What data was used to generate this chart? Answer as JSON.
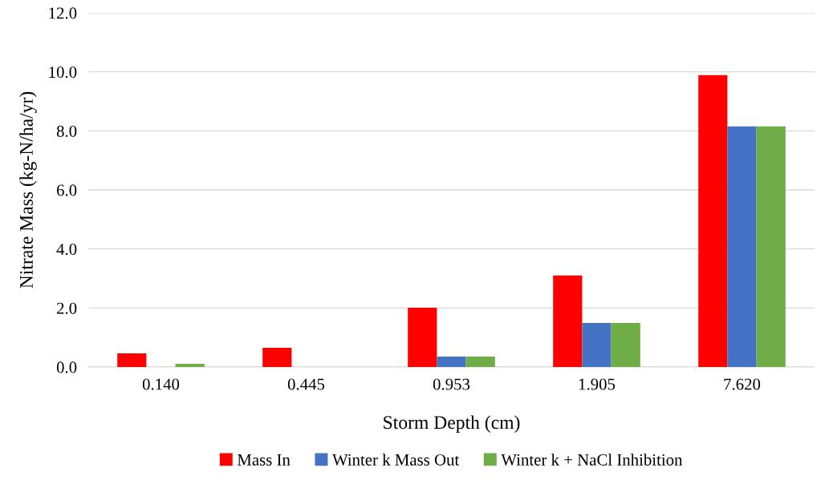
{
  "chart_data": {
    "type": "bar",
    "xlabel": "Storm Depth (cm)",
    "ylabel": "Nitrate Mass (kg-N/ha/yr)",
    "categories": [
      "0.140",
      "0.445",
      "0.953",
      "1.905",
      "7.620"
    ],
    "series": [
      {
        "name": "Mass In",
        "color": "#ff0000",
        "values": [
          0.46,
          0.65,
          2.01,
          3.1,
          9.89
        ]
      },
      {
        "name": "Winter k Mass Out",
        "color": "#4472c4",
        "values": [
          0,
          0,
          0.35,
          1.49,
          8.15
        ]
      },
      {
        "name": "Winter k + NaCl Inhibition",
        "color": "#70ad47",
        "values": [
          0.11,
          0,
          0.35,
          1.49,
          8.15
        ]
      }
    ],
    "ylim": [
      0,
      12
    ],
    "yticks": [
      {
        "value": 0,
        "label": "0.0"
      },
      {
        "value": 2,
        "label": "2.0"
      },
      {
        "value": 4,
        "label": "4.0"
      },
      {
        "value": 6,
        "label": "6.0"
      },
      {
        "value": 8,
        "label": "8.0"
      },
      {
        "value": 10,
        "label": "10.0"
      },
      {
        "value": 12,
        "label": "12.0"
      }
    ],
    "grid": "y",
    "legend": "bottom"
  }
}
